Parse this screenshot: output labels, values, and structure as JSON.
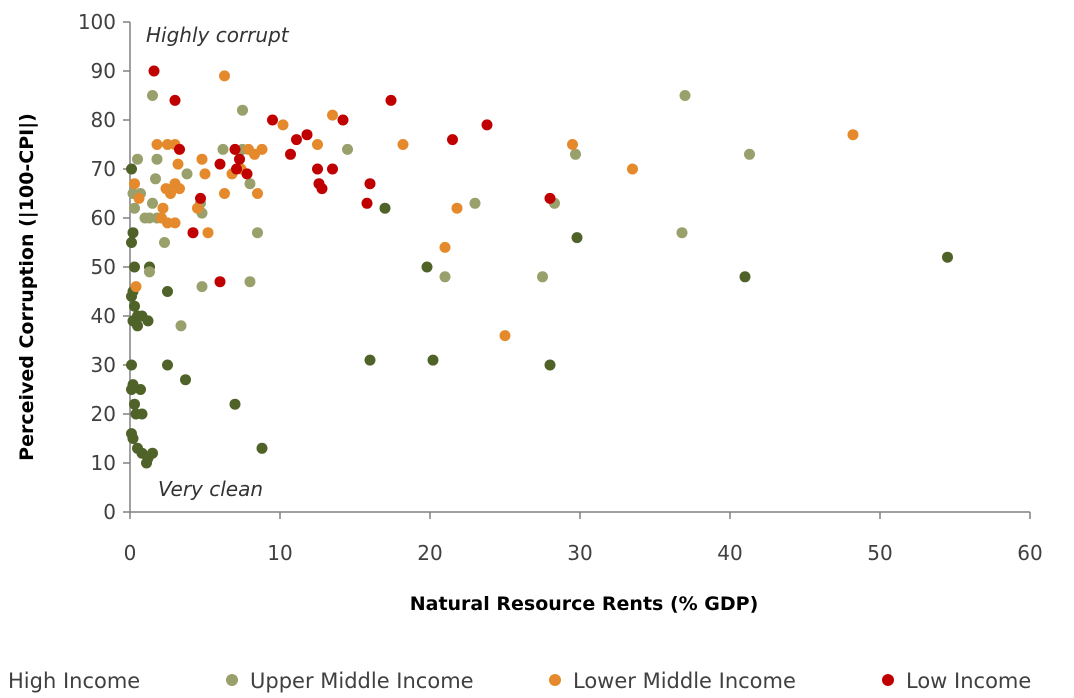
{
  "chart_data": {
    "type": "scatter",
    "title": "",
    "xlabel": "Natural Resource Rents (% GDP)",
    "ylabel": "Perceived Corruption (|100-CPI|)",
    "xlim": [
      0,
      60
    ],
    "ylim": [
      0,
      100
    ],
    "xticks": [
      "0",
      "10",
      "20",
      "30",
      "40",
      "50",
      "60"
    ],
    "yticks": [
      "0",
      "10",
      "20",
      "30",
      "40",
      "50",
      "60",
      "70",
      "80",
      "90",
      "100"
    ],
    "grid": false,
    "legend_position": "bottom",
    "annotations": [
      {
        "text": "Highly corrupt",
        "x": 1,
        "y": 97
      },
      {
        "text": "Very clean",
        "x": 2,
        "y": 4
      }
    ],
    "series": [
      {
        "name": "High Income",
        "color": "#4f6228",
        "points": [
          [
            0.1,
            70
          ],
          [
            0.1,
            55
          ],
          [
            0.2,
            57
          ],
          [
            0.3,
            50
          ],
          [
            0.2,
            45
          ],
          [
            0.1,
            44
          ],
          [
            0.3,
            42
          ],
          [
            0.5,
            40
          ],
          [
            0.2,
            39
          ],
          [
            0.8,
            40
          ],
          [
            1.2,
            39
          ],
          [
            0.5,
            38
          ],
          [
            0.1,
            30
          ],
          [
            0.2,
            26
          ],
          [
            0.1,
            25
          ],
          [
            0.3,
            22
          ],
          [
            0.4,
            20
          ],
          [
            0.8,
            20
          ],
          [
            0.7,
            25
          ],
          [
            0.1,
            16
          ],
          [
            0.2,
            15
          ],
          [
            0.5,
            13
          ],
          [
            0.8,
            12
          ],
          [
            1.2,
            11
          ],
          [
            1.5,
            12
          ],
          [
            1.1,
            10
          ],
          [
            1.3,
            50
          ],
          [
            2.5,
            45
          ],
          [
            2.5,
            30
          ],
          [
            3.7,
            27
          ],
          [
            7,
            22
          ],
          [
            8.8,
            13
          ],
          [
            16,
            31
          ],
          [
            20.2,
            31
          ],
          [
            28,
            30
          ],
          [
            17,
            62
          ],
          [
            19.8,
            50
          ],
          [
            29.8,
            56
          ],
          [
            41,
            48
          ],
          [
            54.5,
            52
          ]
        ]
      },
      {
        "name": "Upper Middle Income",
        "color": "#9aa06b",
        "points": [
          [
            1.5,
            85
          ],
          [
            7.5,
            82
          ],
          [
            37,
            85
          ],
          [
            0.2,
            65
          ],
          [
            0.5,
            72
          ],
          [
            0.7,
            65
          ],
          [
            1.5,
            63
          ],
          [
            1.7,
            68
          ],
          [
            1.8,
            72
          ],
          [
            1,
            60
          ],
          [
            1.3,
            60
          ],
          [
            1.8,
            60
          ],
          [
            2.3,
            55
          ],
          [
            3.8,
            69
          ],
          [
            4.7,
            63
          ],
          [
            4.8,
            61
          ],
          [
            6.2,
            74
          ],
          [
            7.5,
            74
          ],
          [
            8,
            67
          ],
          [
            8.5,
            57
          ],
          [
            14.5,
            74
          ],
          [
            21,
            48
          ],
          [
            23,
            63
          ],
          [
            27.5,
            48
          ],
          [
            28.3,
            63
          ],
          [
            29.7,
            73
          ],
          [
            36.8,
            57
          ],
          [
            41.3,
            73
          ],
          [
            4.8,
            46
          ],
          [
            8,
            47
          ],
          [
            3.4,
            38
          ],
          [
            1.3,
            49
          ],
          [
            0.3,
            62
          ]
        ]
      },
      {
        "name": "Lower Middle Income",
        "color": "#e58a2c",
        "points": [
          [
            6.3,
            89
          ],
          [
            13.5,
            81
          ],
          [
            10.2,
            79
          ],
          [
            18.2,
            75
          ],
          [
            29.5,
            75
          ],
          [
            48.2,
            77
          ],
          [
            1.8,
            75
          ],
          [
            2.5,
            75
          ],
          [
            3,
            75
          ],
          [
            3.2,
            71
          ],
          [
            4.8,
            72
          ],
          [
            5,
            69
          ],
          [
            6.8,
            69
          ],
          [
            7.4,
            70
          ],
          [
            7.9,
            74
          ],
          [
            8.3,
            73
          ],
          [
            8.8,
            74
          ],
          [
            12.5,
            75
          ],
          [
            2.4,
            66
          ],
          [
            2.7,
            65
          ],
          [
            3,
            67
          ],
          [
            3.3,
            66
          ],
          [
            2.2,
            62
          ],
          [
            2.5,
            59
          ],
          [
            3,
            59
          ],
          [
            2.1,
            60
          ],
          [
            6.3,
            65
          ],
          [
            8.5,
            65
          ],
          [
            5.2,
            57
          ],
          [
            21.8,
            62
          ],
          [
            21,
            54
          ],
          [
            33.5,
            70
          ],
          [
            0.3,
            67
          ],
          [
            0.6,
            64
          ],
          [
            0.4,
            46
          ],
          [
            25,
            36
          ],
          [
            4.5,
            62
          ]
        ]
      },
      {
        "name": "Low Income",
        "color": "#c00000",
        "points": [
          [
            1.6,
            90
          ],
          [
            3,
            84
          ],
          [
            17.4,
            84
          ],
          [
            9.5,
            80
          ],
          [
            14.2,
            80
          ],
          [
            23.8,
            79
          ],
          [
            11.1,
            76
          ],
          [
            11.8,
            77
          ],
          [
            12.5,
            70
          ],
          [
            12.6,
            67
          ],
          [
            12.8,
            66
          ],
          [
            13.5,
            70
          ],
          [
            10.7,
            73
          ],
          [
            7,
            74
          ],
          [
            7.3,
            72
          ],
          [
            7.8,
            69
          ],
          [
            7.1,
            70
          ],
          [
            6,
            71
          ],
          [
            3.3,
            74
          ],
          [
            21.5,
            76
          ],
          [
            16,
            67
          ],
          [
            15.8,
            63
          ],
          [
            4.7,
            64
          ],
          [
            28,
            64
          ],
          [
            4.2,
            57
          ],
          [
            6,
            47
          ]
        ]
      }
    ]
  }
}
